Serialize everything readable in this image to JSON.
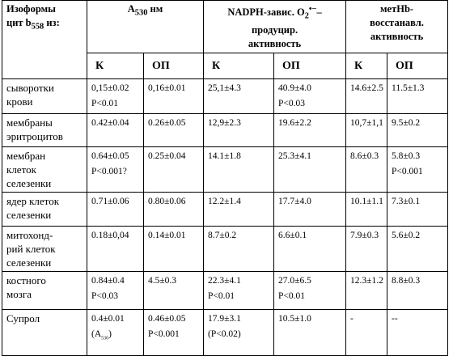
{
  "table": {
    "header": [
      [
        [
          "Изоформы"
        ],
        [
          "цит b",
          {
            "sub": "558"
          },
          " из:"
        ]
      ],
      [
        [
          "A",
          {
            "sub": "530"
          },
          " нм"
        ]
      ],
      [
        [
          "NADPH-завис. O",
          {
            "sub": "2"
          },
          {
            "sup": "•−"
          },
          "–"
        ],
        [
          "продуцир."
        ],
        [
          "активность"
        ]
      ],
      [
        [
          "метHb-"
        ],
        [
          "восстанавл."
        ],
        [
          "активность"
        ]
      ]
    ],
    "subheader": [
      "К",
      "ОП",
      "К",
      "ОП",
      "К",
      "ОП"
    ],
    "rows": [
      [
        [
          "сыворотки",
          "крови"
        ],
        [
          "0,15±0.02",
          "P<0.01"
        ],
        [
          "0,16±0.01"
        ],
        [
          "25,1±4.3"
        ],
        [
          "40.9±4.0",
          "P<0.03"
        ],
        [
          "14.6±2.5"
        ],
        [
          "11.5±1.3"
        ]
      ],
      [
        [
          "мембраны",
          "эритроцитов"
        ],
        [
          "0.42±0.04"
        ],
        [
          "0.26±0.05"
        ],
        [
          "12,9±2.3"
        ],
        [
          "19.6±2.2"
        ],
        [
          "10,7±1,1"
        ],
        [
          "9.5±0.2"
        ]
      ],
      [
        [
          "мембран",
          "клеток",
          "селезенки"
        ],
        [
          "0.64±0.05",
          "P<0.001?"
        ],
        [
          "0.25±0.04"
        ],
        [
          "14.1±1.8"
        ],
        [
          "25.3±4.1"
        ],
        [
          "8.6±0.3"
        ],
        [
          "5.8±0.3",
          "P<0.001"
        ]
      ],
      [
        [
          "ядер клеток",
          "селезенки"
        ],
        [
          "0.71±0.06"
        ],
        [
          "0.80±0.06"
        ],
        [
          "12.2±1.4"
        ],
        [
          "17.7±4.0"
        ],
        [
          "10.1±1.1"
        ],
        [
          "7.3±0.1"
        ]
      ],
      [
        [
          "митохонд-",
          "рий клеток",
          "селезенки"
        ],
        [
          "0.18±0,04"
        ],
        [
          "0.14±0.01"
        ],
        [
          "8.7±0.2"
        ],
        [
          "6.6±0.1"
        ],
        [
          "7.9±0.3"
        ],
        [
          "5.6±0.2"
        ]
      ],
      [
        [
          "костного",
          "мозга"
        ],
        [
          "0.84±0.4",
          "P<0.03"
        ],
        [
          "4.5±0.3"
        ],
        [
          "22.3±4.1",
          "P<0.01"
        ],
        [
          "27.0±6.5",
          "P<0.01"
        ],
        [
          "12.3±1.2"
        ],
        [
          "8.8±0.3"
        ]
      ],
      [
        [
          "Супрол"
        ],
        [
          "0.4±0.01",
          [
            "(A",
            {
              "sub": "530"
            },
            ")"
          ]
        ],
        [
          "0.46±0.05",
          "P<0.001"
        ],
        [
          "17.9±3.1",
          "(P<0.02)"
        ],
        [
          "10.5±1.0"
        ],
        [
          "-"
        ],
        [
          "--"
        ]
      ]
    ]
  }
}
